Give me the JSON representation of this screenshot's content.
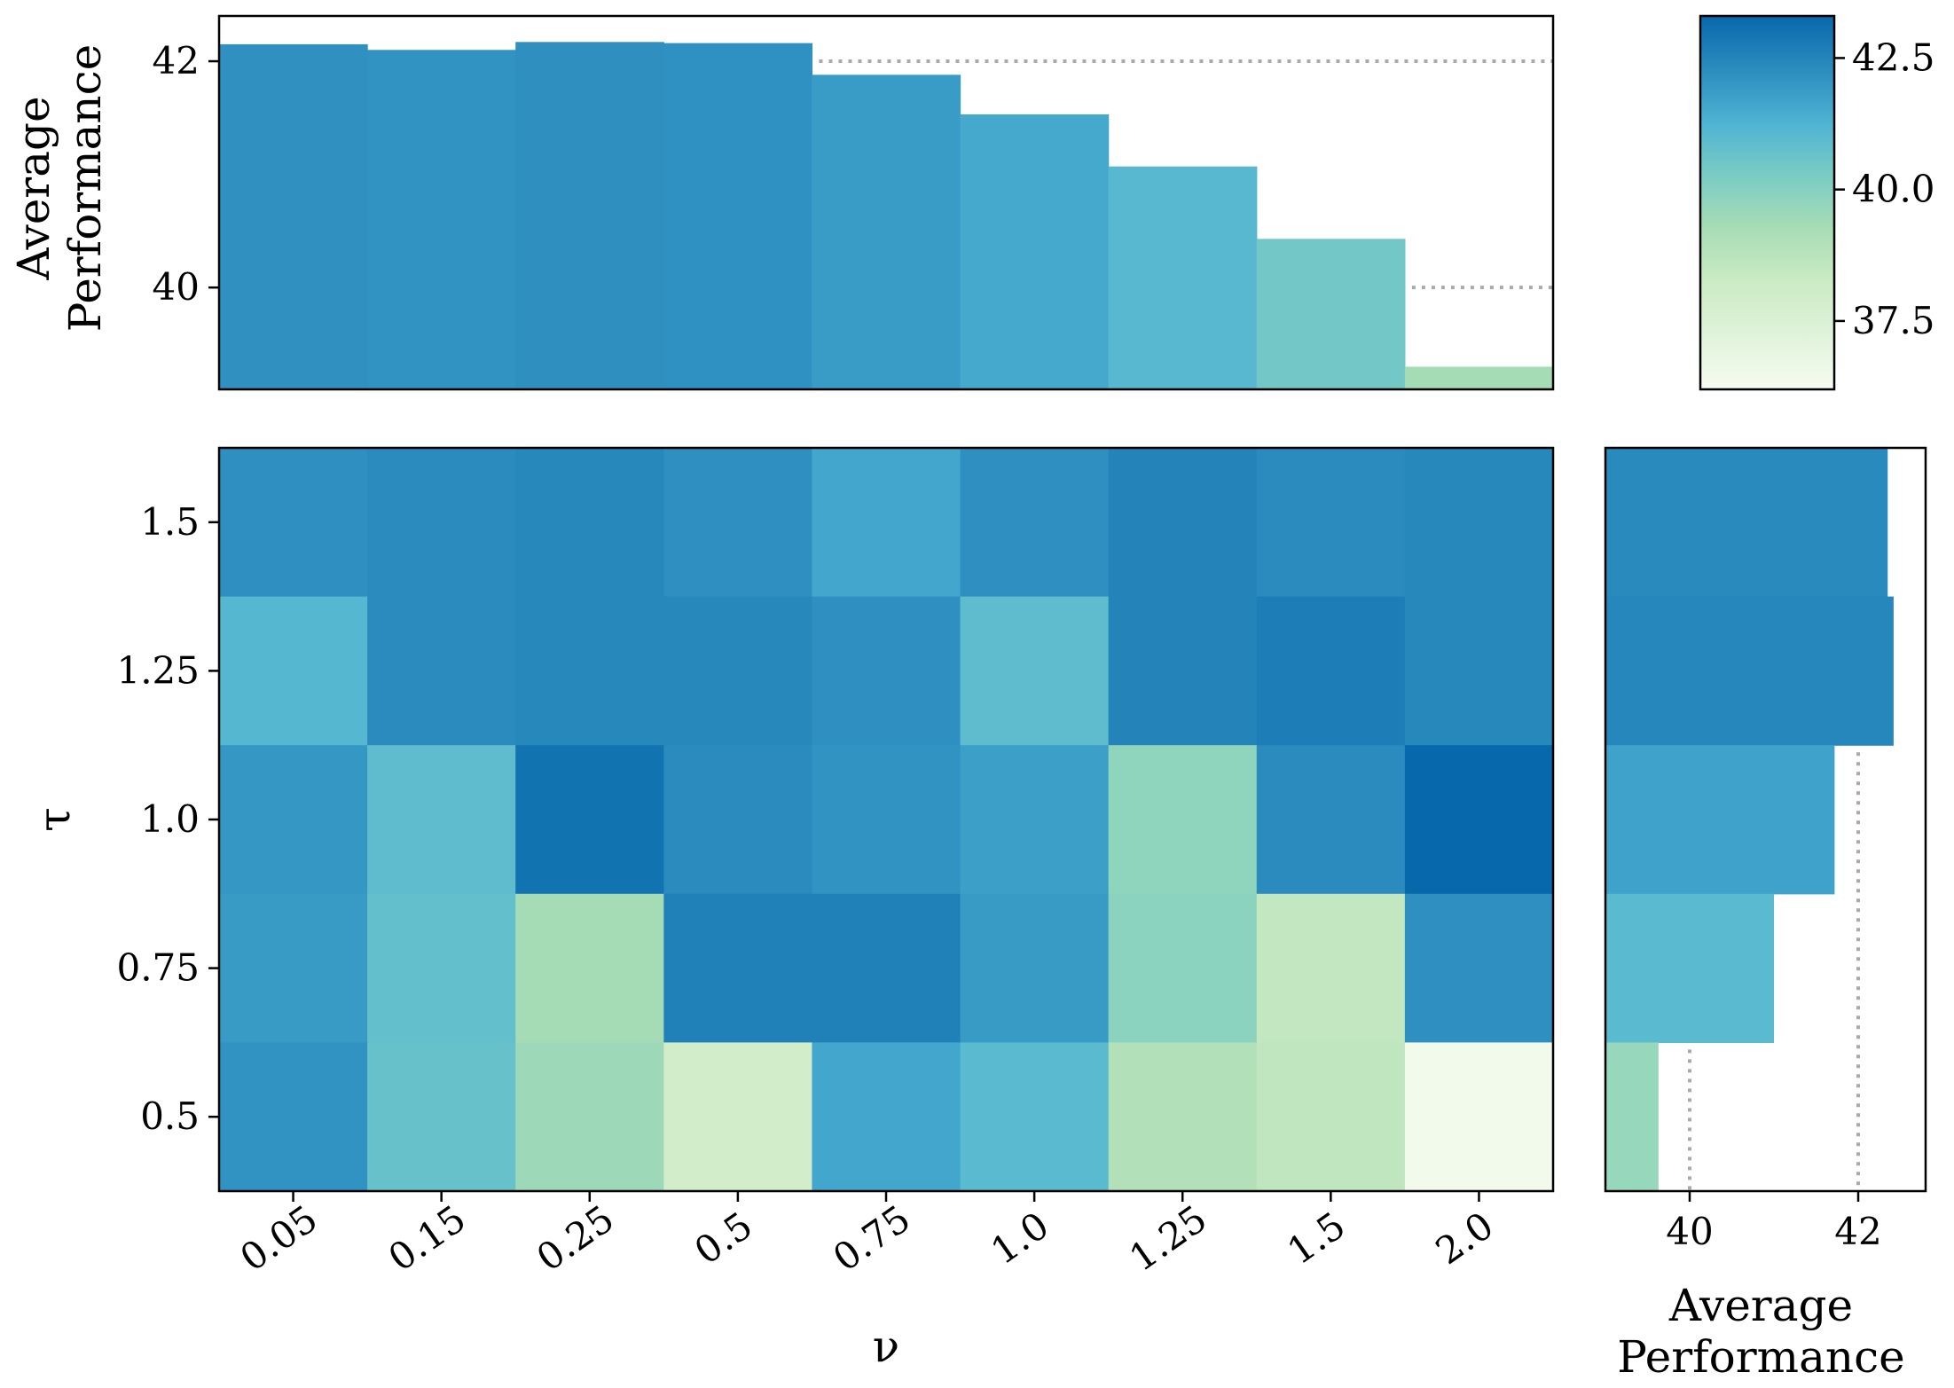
{
  "chart_data": {
    "type": "heatmap",
    "title": "",
    "xlabel": "ν",
    "ylabel": "τ",
    "x_categories": [
      "0.05",
      "0.15",
      "0.25",
      "0.5",
      "0.75",
      "1.0",
      "1.25",
      "1.5",
      "2.0"
    ],
    "y_categories": [
      "1.5",
      "1.25",
      "1.0",
      "0.75",
      "0.5"
    ],
    "values": [
      [
        42.2,
        42.3,
        42.4,
        42.2,
        41.6,
        42.2,
        42.5,
        42.3,
        42.4
      ],
      [
        41.1,
        42.3,
        42.4,
        42.4,
        42.2,
        40.9,
        42.5,
        42.7,
        42.4
      ],
      [
        42.0,
        40.9,
        43.0,
        42.3,
        42.1,
        41.8,
        39.8,
        42.3,
        43.3
      ],
      [
        41.9,
        40.8,
        39.3,
        42.6,
        42.6,
        41.9,
        39.9,
        38.5,
        42.2
      ],
      [
        42.1,
        40.7,
        39.5,
        38.0,
        41.6,
        41.0,
        39.0,
        38.6,
        36.4
      ]
    ],
    "color_scale": {
      "range": [
        36.2,
        43.3
      ],
      "ticks": [
        37.5,
        40.0,
        42.5
      ],
      "tick_labels": [
        "37.5",
        "40.0",
        "42.5"
      ],
      "colors": [
        "#f7fcf0",
        "#e0f3db",
        "#ccebc5",
        "#a8ddb5",
        "#7bccc4",
        "#4eb3d3",
        "#2b8cbe",
        "#0868ac"
      ]
    },
    "marginal_x": {
      "type": "bar",
      "ylabel": "Average Performance",
      "values": [
        42.15,
        42.1,
        42.17,
        42.16,
        41.88,
        41.53,
        41.07,
        40.43,
        39.3
      ],
      "ylim": [
        39.1,
        42.4
      ],
      "ticks": [
        40,
        42
      ],
      "tick_labels": [
        "40",
        "42"
      ],
      "reference_lines": [
        40,
        42
      ]
    },
    "marginal_y": {
      "type": "bar",
      "xlabel": "Average Performance",
      "values": [
        42.35,
        42.42,
        41.72,
        41.0,
        39.63
      ],
      "xlim": [
        39.0,
        42.8
      ],
      "ticks": [
        40,
        42
      ],
      "tick_labels": [
        "40",
        "42"
      ],
      "reference_lines": [
        40,
        42
      ]
    }
  }
}
